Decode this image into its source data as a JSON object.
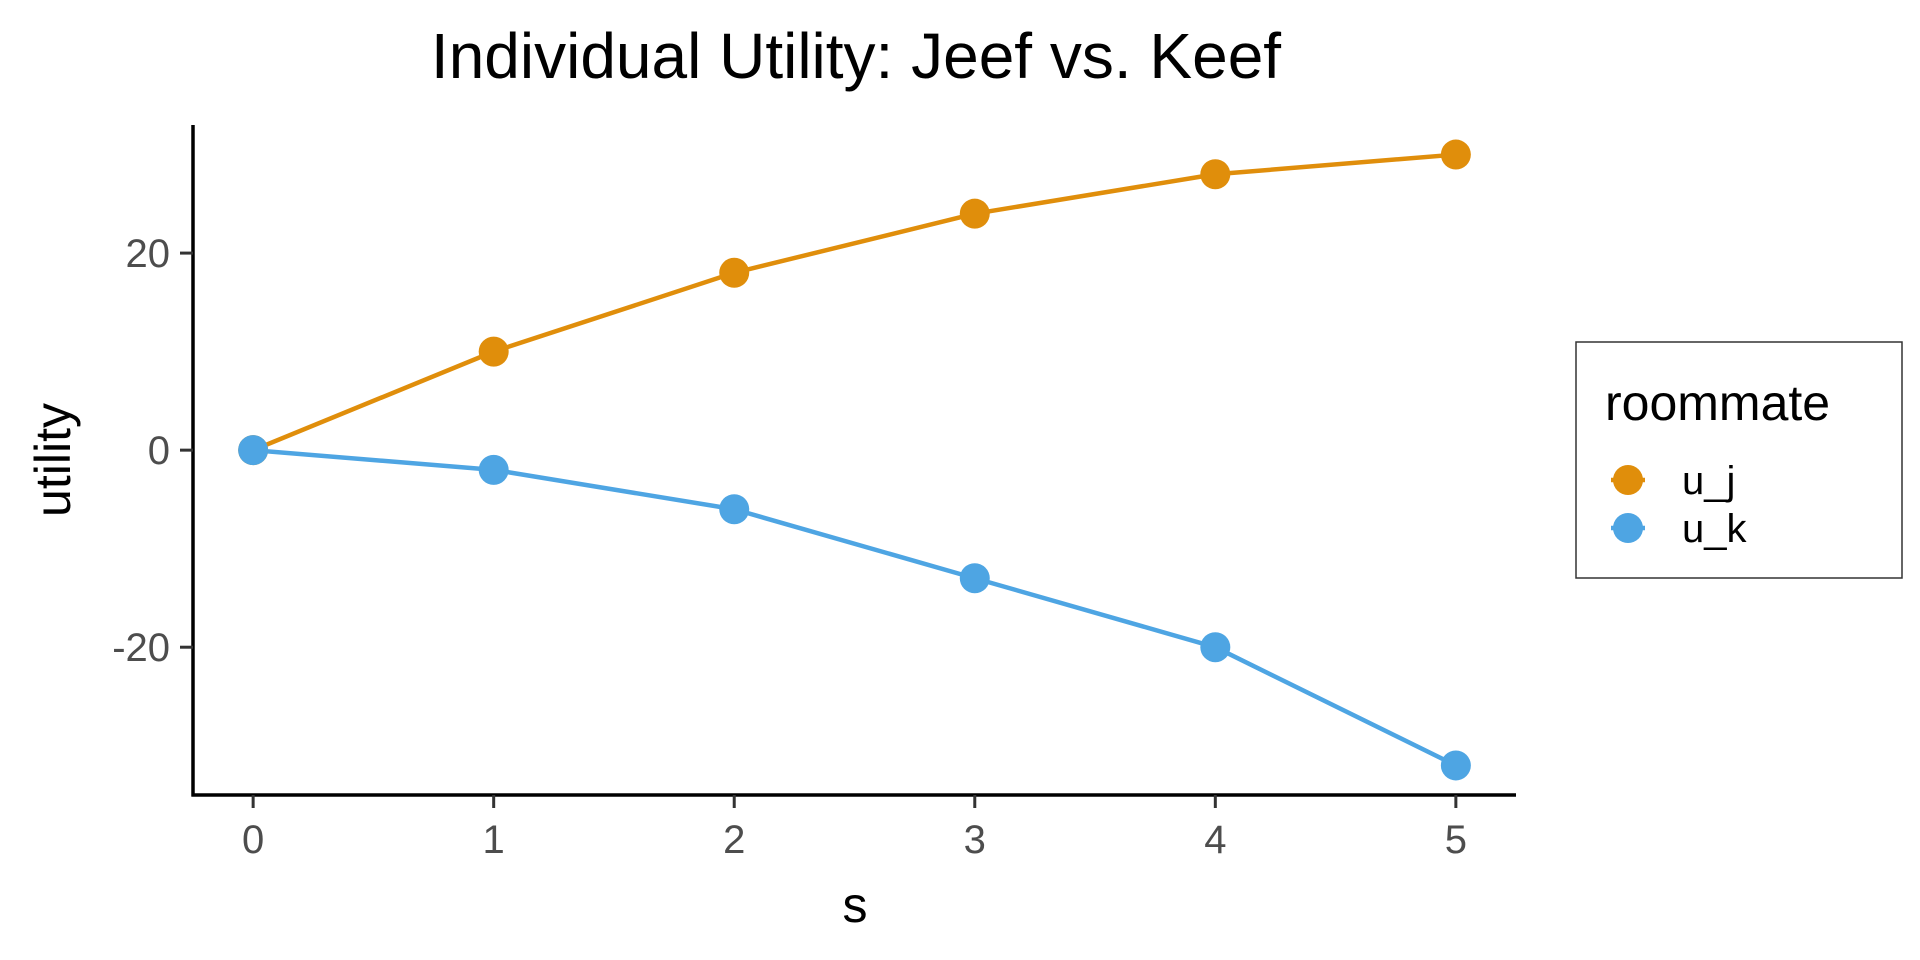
{
  "chart_data": {
    "type": "line",
    "title": "Individual Utility: Jeef vs. Keef",
    "xlabel": "s",
    "ylabel": "utility",
    "x": [
      0,
      1,
      2,
      3,
      4,
      5
    ],
    "xlim": [
      -0.25,
      5.25
    ],
    "ylim": [
      -35,
      33
    ],
    "x_ticks": [
      0,
      1,
      2,
      3,
      4,
      5
    ],
    "y_ticks": [
      -20,
      0,
      20
    ],
    "grid": false,
    "legend": {
      "title": "roommate",
      "placement": "right"
    },
    "series": [
      {
        "name": "u_j",
        "color": "#E08E0B",
        "values": [
          0,
          10,
          18,
          24,
          28,
          30
        ]
      },
      {
        "name": "u_k",
        "color": "#4EA5E3",
        "values": [
          0,
          -2,
          -6,
          -13,
          -20,
          -32
        ]
      }
    ]
  }
}
